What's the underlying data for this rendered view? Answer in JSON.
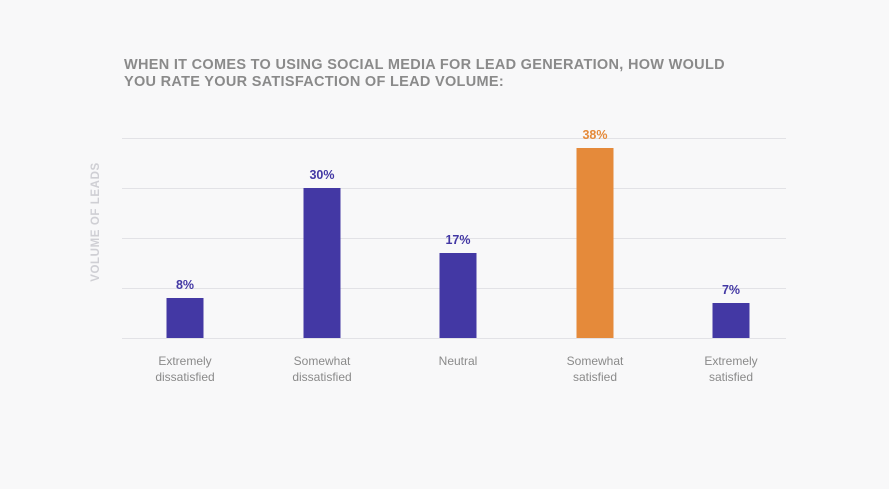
{
  "chart_data": {
    "type": "bar",
    "title_lines": [
      "WHEN IT COMES TO USING SOCIAL MEDIA FOR LEAD GENERATION, HOW WOULD",
      "YOU RATE YOUR SATISFACTION OF LEAD VOLUME:"
    ],
    "ylabel": "VOLUME OF LEADS",
    "xlabel": "",
    "ylim": [
      0,
      40
    ],
    "grid": true,
    "categories": [
      [
        "Extremely",
        "dissatisfied"
      ],
      [
        "Somewhat",
        "dissatisfied"
      ],
      [
        "Neutral"
      ],
      [
        "Somewhat",
        "satisfied"
      ],
      [
        "Extremely",
        "satisfied"
      ]
    ],
    "values": [
      8,
      30,
      17,
      38,
      7
    ],
    "value_labels": [
      "8%",
      "30%",
      "17%",
      "38%",
      "7%"
    ],
    "highlight_index": 3
  },
  "colors": {
    "bar": "#4338a4",
    "highlight": "#e58a3a"
  }
}
